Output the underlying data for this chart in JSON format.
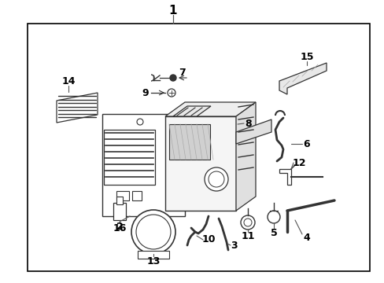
{
  "background_color": "#ffffff",
  "border_color": "#000000",
  "line_color": "#333333",
  "text_color": "#000000",
  "fig_width": 4.89,
  "fig_height": 3.6,
  "dpi": 100
}
